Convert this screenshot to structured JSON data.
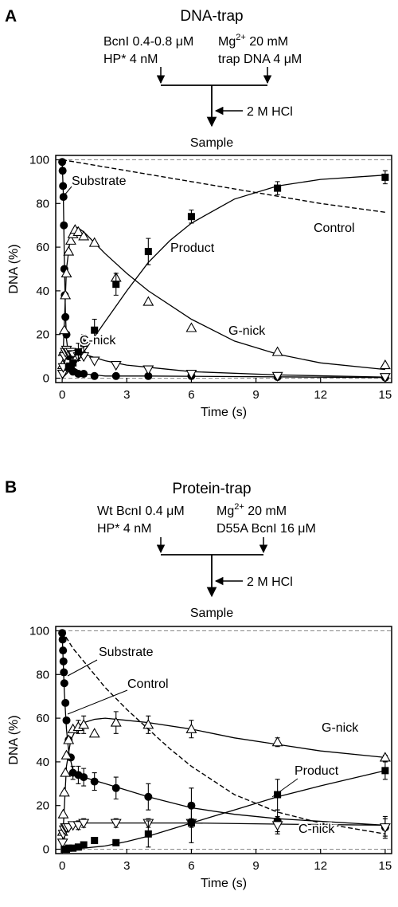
{
  "panels": [
    {
      "letter": "A",
      "title": "DNA-trap",
      "scheme": {
        "left_line1": "BcnI 0.4-0.8 μM",
        "left_line2": "HP* 4 nM",
        "right_line1_pre": "Mg",
        "right_line1_sup": "2+",
        "right_line1_post": " 20 mM",
        "right_line2": "trap DNA 4 μM",
        "quench": "2 M HCl",
        "sample": "Sample"
      }
    },
    {
      "letter": "B",
      "title": "Protein-trap",
      "scheme": {
        "left_line1": "Wt BcnI 0.4 μM",
        "left_line2": "HP* 4 nM",
        "right_line1_pre": "Mg",
        "right_line1_sup": "2+",
        "right_line1_post": " 20 mM",
        "right_line2": "D55A BcnI 16 μM",
        "quench": "2 M HCl",
        "sample": "Sample"
      }
    }
  ],
  "chart_data": [
    {
      "type": "scatter",
      "title": "DNA-trap",
      "xlabel": "Time (s)",
      "ylabel": "DNA (%)",
      "xlim": [
        -0.3,
        15.3
      ],
      "ylim": [
        -2,
        102
      ],
      "xticks": [
        0,
        3,
        6,
        9,
        12,
        15
      ],
      "yticks": [
        0,
        20,
        40,
        60,
        80,
        100
      ],
      "dashed_refs": [
        0,
        100
      ],
      "series": [
        {
          "name": "Substrate",
          "marker": "filled-circle",
          "x": [
            0,
            0.02,
            0.04,
            0.06,
            0.08,
            0.1,
            0.12,
            0.15,
            0.2,
            0.25,
            0.3,
            0.4,
            0.5,
            0.75,
            1,
            1.5,
            2.5,
            4,
            6,
            10,
            15
          ],
          "y": [
            99,
            95,
            88,
            83,
            70,
            50,
            38,
            28,
            20,
            13,
            10,
            5,
            3,
            2,
            2,
            1,
            1,
            1,
            1,
            0.5,
            0.3
          ],
          "fit": {
            "x": [
              0,
              0.05,
              0.1,
              0.15,
              0.2,
              0.3,
              0.5,
              1,
              2,
              4,
              15
            ],
            "y": [
              99,
              85,
              55,
              30,
              18,
              10,
              5,
              2,
              1,
              1,
              0.3
            ]
          }
        },
        {
          "name": "G-nick",
          "marker": "open-triangle-up",
          "x": [
            0.02,
            0.05,
            0.1,
            0.15,
            0.2,
            0.3,
            0.4,
            0.5,
            0.6,
            0.75,
            1,
            1.5,
            2.5,
            4,
            6,
            10,
            15
          ],
          "y": [
            6,
            12,
            22,
            38,
            48,
            58,
            63,
            66,
            68,
            67,
            65,
            62,
            46,
            35,
            23,
            12,
            6
          ],
          "fit": {
            "x": [
              0,
              0.2,
              0.4,
              0.7,
              1,
              2,
              3,
              4,
              6,
              8,
              10,
              12,
              15
            ],
            "y": [
              0,
              50,
              66,
              69,
              67,
              57,
              48,
              40,
              27,
              17,
              11,
              7,
              4
            ]
          }
        },
        {
          "name": "C-nick",
          "marker": "open-triangle-down",
          "x": [
            0.02,
            0.05,
            0.1,
            0.15,
            0.2,
            0.3,
            0.4,
            0.5,
            0.75,
            1,
            1.5,
            2.5,
            4,
            6,
            10,
            15
          ],
          "y": [
            2,
            5,
            10,
            12,
            13,
            12,
            12,
            11,
            10,
            10,
            8,
            6,
            4,
            2,
            1,
            0.5
          ],
          "fit": {
            "x": [
              0,
              0.2,
              0.4,
              0.7,
              1,
              2,
              3,
              4,
              6,
              10,
              15
            ],
            "y": [
              0,
              12,
              13,
              12,
              11,
              8,
              6,
              5,
              3,
              1.5,
              0.5
            ]
          }
        },
        {
          "name": "Product",
          "marker": "filled-square",
          "x": [
            0.3,
            0.5,
            0.75,
            1,
            1.5,
            2.5,
            4,
            6,
            10,
            15
          ],
          "y": [
            5,
            7,
            12,
            16,
            22,
            43,
            58,
            74,
            87,
            92
          ],
          "err": [
            2,
            3,
            4,
            4,
            5,
            5,
            6,
            3,
            3,
            3
          ],
          "fit": {
            "x": [
              0,
              0.5,
              1,
              2,
              3,
              4,
              5,
              6,
              8,
              10,
              12,
              15
            ],
            "y": [
              0,
              5,
              12,
              26,
              40,
              53,
              63,
              71,
              82,
              88,
              91,
              93
            ]
          }
        },
        {
          "name": "Control",
          "marker": "none",
          "line": "dashed",
          "fit": {
            "x": [
              0,
              3,
              6,
              9,
              12,
              15
            ],
            "y": [
              100,
              95,
              90,
              85,
              80,
              76
            ]
          }
        }
      ],
      "annotations": [
        "Substrate",
        "Product",
        "Control",
        "G-nick",
        "C-nick"
      ]
    },
    {
      "type": "scatter",
      "title": "Protein-trap",
      "xlabel": "Time (s)",
      "ylabel": "DNA (%)",
      "xlim": [
        -0.3,
        15.3
      ],
      "ylim": [
        -2,
        102
      ],
      "xticks": [
        0,
        3,
        6,
        9,
        12,
        15
      ],
      "yticks": [
        0,
        20,
        40,
        60,
        80,
        100
      ],
      "dashed_refs": [
        0,
        100
      ],
      "series": [
        {
          "name": "Substrate",
          "marker": "filled-circle",
          "x": [
            0,
            0.02,
            0.04,
            0.06,
            0.08,
            0.1,
            0.15,
            0.2,
            0.3,
            0.4,
            0.5,
            0.75,
            1,
            1.5,
            2.5,
            4,
            6,
            10,
            15
          ],
          "y": [
            99,
            96,
            91,
            86,
            81,
            76,
            67,
            59,
            50,
            42,
            35,
            34,
            33,
            31,
            28,
            24,
            20,
            13,
            10
          ],
          "err": [
            0,
            0,
            0,
            0,
            0,
            0,
            0,
            0,
            0,
            0,
            3,
            4,
            4,
            4,
            5,
            6,
            8,
            5,
            4
          ],
          "fit": {
            "x": [
              0,
              0.05,
              0.1,
              0.2,
              0.3,
              0.5,
              0.75,
              1,
              2,
              3,
              4,
              6,
              8,
              10,
              15
            ],
            "y": [
              99,
              85,
              72,
              55,
              45,
              36,
              34,
              33,
              30,
              27,
              24,
              19,
              16,
              14,
              11
            ]
          }
        },
        {
          "name": "G-nick",
          "marker": "open-triangle-up",
          "x": [
            0.02,
            0.05,
            0.1,
            0.15,
            0.2,
            0.3,
            0.5,
            0.75,
            1,
            1.5,
            2.5,
            4,
            6,
            10,
            15
          ],
          "y": [
            8,
            16,
            26,
            35,
            43,
            50,
            55,
            56,
            57,
            53,
            58,
            57,
            55,
            49,
            42
          ],
          "err": [
            0,
            0,
            0,
            0,
            0,
            0,
            0,
            3,
            4,
            0,
            5,
            4,
            4,
            2,
            1
          ],
          "fit": {
            "x": [
              0,
              0.2,
              0.4,
              0.7,
              1,
              1.5,
              2,
              3,
              4,
              6,
              8,
              10,
              12,
              15
            ],
            "y": [
              0,
              38,
              50,
              56,
              58,
              59.5,
              60,
              59,
              58,
              55,
              51,
              48,
              45,
              42
            ]
          }
        },
        {
          "name": "C-nick",
          "marker": "open-triangle-down",
          "x": [
            0.02,
            0.05,
            0.1,
            0.15,
            0.2,
            0.3,
            0.5,
            0.75,
            1,
            2.5,
            4,
            6,
            10,
            15
          ],
          "y": [
            3,
            7,
            9,
            10,
            10,
            10,
            11,
            11,
            12,
            12,
            12,
            12,
            11,
            10
          ],
          "err": [
            0,
            0,
            0,
            0,
            0,
            0,
            0,
            2,
            2,
            2,
            2,
            2,
            4,
            5
          ],
          "fit": {
            "x": [
              0,
              0.2,
              0.5,
              1,
              2,
              4,
              6,
              10,
              15
            ],
            "y": [
              0,
              10,
              11.5,
              12,
              12,
              12,
              12,
              11.5,
              11
            ]
          }
        },
        {
          "name": "Product",
          "marker": "filled-square",
          "x": [
            0.1,
            0.2,
            0.3,
            0.5,
            0.75,
            1,
            1.5,
            2.5,
            4,
            6,
            10,
            15
          ],
          "y": [
            0,
            0,
            0.5,
            0.5,
            1,
            2,
            4,
            3,
            7,
            12,
            25,
            36
          ],
          "err": [
            0,
            0,
            0,
            0,
            0,
            0,
            0,
            0,
            6,
            9,
            7,
            4
          ],
          "fit": {
            "x": [
              0,
              1,
              2,
              3,
              4,
              5,
              6,
              8,
              10,
              12,
              15
            ],
            "y": [
              0,
              0.5,
              1.5,
              3.5,
              6,
              9,
              12,
              18,
              24,
              29,
              36
            ]
          }
        },
        {
          "name": "Control",
          "marker": "none",
          "line": "dashed",
          "fit": {
            "x": [
              0,
              0.5,
              1,
              2,
              3,
              4,
              5,
              6,
              8,
              10,
              12,
              15
            ],
            "y": [
              100,
              92,
              86,
              74,
              64,
              55,
              46,
              38,
              25,
              17,
              12,
              7
            ]
          }
        }
      ],
      "annotations": [
        "Substrate",
        "Control",
        "G-nick",
        "Product",
        "C-nick"
      ]
    }
  ]
}
